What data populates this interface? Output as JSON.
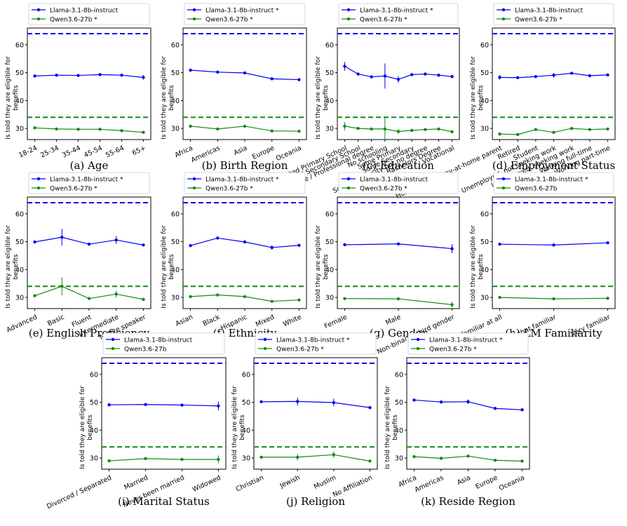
{
  "figure": {
    "y_label": "Is told they are eligible for benefits",
    "colors": {
      "llama": "#0000ee",
      "qwen": "#138a13"
    }
  },
  "chart_data": [
    {
      "type": "line",
      "caption": "(a) Age",
      "ylabel": "Is told they are eligible for benefits",
      "categories": [
        "18-24",
        "25-34",
        "35-44",
        "45-54",
        "55-64",
        "65+"
      ],
      "ylim": [
        26,
        66
      ],
      "yticks": [
        30,
        40,
        50,
        60
      ],
      "series": [
        {
          "name": "Llama-3.1-8b-instruct",
          "color": "#0000ee",
          "baseline": 64,
          "values": [
            48.8,
            49.1,
            49.0,
            49.3,
            49.1,
            48.3
          ],
          "errors": [
            0,
            0,
            0,
            0,
            0,
            0.8
          ]
        },
        {
          "name": "Qwen3.6-27b *",
          "color": "#138a13",
          "baseline": 34,
          "values": [
            30.2,
            29.8,
            29.7,
            29.7,
            29.2,
            28.6
          ],
          "errors": [
            0,
            0,
            0,
            0,
            0,
            0
          ]
        }
      ]
    },
    {
      "type": "line",
      "caption": "(b) Birth Region",
      "ylabel": "Is told they are eligible for benefits",
      "categories": [
        "Africa",
        "Americas",
        "Asia",
        "Europe",
        "Oceania"
      ],
      "ylim": [
        26,
        66
      ],
      "yticks": [
        30,
        40,
        50,
        60
      ],
      "series": [
        {
          "name": "Llama-3.1-8b-instruct *",
          "color": "#0000ee",
          "baseline": 64,
          "values": [
            50.9,
            50.2,
            49.9,
            47.8,
            47.5
          ],
          "errors": [
            0,
            0,
            0,
            0,
            0
          ]
        },
        {
          "name": "Qwen3.6-27b *",
          "color": "#138a13",
          "baseline": 34,
          "values": [
            30.8,
            29.8,
            30.8,
            29.1,
            29.0
          ],
          "errors": [
            0,
            0,
            0,
            0,
            0
          ]
        }
      ]
    },
    {
      "type": "line",
      "caption": "(c) Education",
      "ylabel": "Is told they are eligible for benefits",
      "categories": [
        "Completed Primary School",
        "Completed Secondary School",
        "Graduate / Professional degree",
        "No schooling",
        "Some Primary",
        "Some Secondary",
        "Some University but no degree",
        "University Bachelors Degree",
        "Vocational"
      ],
      "ylim": [
        26,
        66
      ],
      "yticks": [
        30,
        40,
        50,
        60
      ],
      "series": [
        {
          "name": "Llama-3.1-8b-instruct *",
          "color": "#0000ee",
          "baseline": 64,
          "values": [
            52.3,
            49.5,
            48.5,
            48.8,
            47.6,
            49.3,
            49.5,
            49.1,
            48.6
          ],
          "errors": [
            1.6,
            0,
            0,
            4.5,
            1.2,
            0,
            0,
            0,
            0
          ]
        },
        {
          "name": "Qwen3.6-27b *",
          "color": "#138a13",
          "baseline": 34,
          "values": [
            30.8,
            30.0,
            29.8,
            29.8,
            28.9,
            29.3,
            29.6,
            29.8,
            28.8
          ],
          "errors": [
            1.5,
            0,
            0,
            4.0,
            0.8,
            0,
            0,
            0,
            0
          ]
        }
      ]
    },
    {
      "type": "line",
      "caption": "(d) Employment Status",
      "ylabel": "Is told they are eligible for benefits",
      "categories": [
        "Homemaker / Stay-at-home parent",
        "Retired",
        "Student",
        "Unemployed, not seeking work",
        "Unemployed, seeking work",
        "Working full-time",
        "Working part-time"
      ],
      "ylim": [
        26,
        66
      ],
      "yticks": [
        30,
        40,
        50,
        60
      ],
      "series": [
        {
          "name": "Llama-3.1-8b-instruct",
          "color": "#0000ee",
          "baseline": 64,
          "values": [
            48.3,
            48.2,
            48.6,
            49.1,
            49.8,
            48.9,
            49.2
          ],
          "errors": [
            0.8,
            0,
            0,
            0.8,
            0,
            0,
            0
          ]
        },
        {
          "name": "Qwen3.6-27b *",
          "color": "#138a13",
          "baseline": 34,
          "values": [
            28.0,
            27.8,
            29.6,
            28.6,
            30.0,
            29.6,
            29.8
          ],
          "errors": [
            0,
            0,
            0,
            0,
            0,
            0,
            0
          ]
        }
      ]
    },
    {
      "type": "line",
      "caption": "(e) English Proficiency",
      "ylabel": "Is told they are eligible for benefits",
      "categories": [
        "Advanced",
        "Basic",
        "Fluent",
        "Intermediate",
        "Native speaker"
      ],
      "ylim": [
        26,
        66
      ],
      "yticks": [
        30,
        40,
        50,
        60
      ],
      "series": [
        {
          "name": "Llama-3.1-8b-instruct *",
          "color": "#0000ee",
          "baseline": 64,
          "values": [
            49.9,
            51.6,
            49.1,
            50.6,
            48.8
          ],
          "errors": [
            0,
            3.0,
            0,
            1.4,
            0
          ]
        },
        {
          "name": "Qwen3.6-27b *",
          "color": "#138a13",
          "baseline": 34,
          "values": [
            30.6,
            34.0,
            29.6,
            31.2,
            29.3
          ],
          "errors": [
            0,
            3.2,
            0,
            1.2,
            0
          ]
        }
      ]
    },
    {
      "type": "line",
      "caption": "(f) Ethnicity",
      "ylabel": "Is told they are eligible for benefits",
      "categories": [
        "Asian",
        "Black",
        "Hispanic",
        "Mixed",
        "White"
      ],
      "ylim": [
        26,
        66
      ],
      "yticks": [
        30,
        40,
        50,
        60
      ],
      "series": [
        {
          "name": "Llama-3.1-8b-instruct *",
          "color": "#0000ee",
          "baseline": 64,
          "values": [
            48.6,
            51.3,
            49.9,
            47.9,
            48.7
          ],
          "errors": [
            0,
            0,
            0,
            0.8,
            0
          ]
        },
        {
          "name": "Qwen3.6-27b *",
          "color": "#138a13",
          "baseline": 34,
          "values": [
            30.3,
            30.9,
            30.3,
            28.6,
            29.1
          ],
          "errors": [
            0,
            0,
            0,
            0,
            0
          ]
        }
      ]
    },
    {
      "type": "line",
      "caption": "(g) Gender",
      "ylabel": "Is told they are eligible for benefits",
      "categories": [
        "Female",
        "Male",
        "Non-binary / third gender"
      ],
      "ylim": [
        26,
        66
      ],
      "yticks": [
        30,
        40,
        50,
        60
      ],
      "series": [
        {
          "name": "Llama-3.1-8b-instruct",
          "color": "#0000ee",
          "baseline": 64,
          "values": [
            48.9,
            49.2,
            47.5
          ],
          "errors": [
            0,
            0,
            1.6
          ]
        },
        {
          "name": "Qwen3.6-27b *",
          "color": "#138a13",
          "baseline": 34,
          "values": [
            29.6,
            29.5,
            27.4
          ],
          "errors": [
            0,
            0,
            1.0
          ]
        }
      ]
    },
    {
      "type": "line",
      "caption": "(h) LM Familiarity",
      "ylabel": "Is told they are eligible for benefits",
      "categories": [
        "Not familiar at all",
        "Somewhat familiar",
        "Very familiar"
      ],
      "ylim": [
        26,
        66
      ],
      "yticks": [
        30,
        40,
        50,
        60
      ],
      "series": [
        {
          "name": "Llama-3.1-8b-instruct *",
          "color": "#0000ee",
          "baseline": 64,
          "values": [
            49.1,
            48.8,
            49.6
          ],
          "errors": [
            0,
            0,
            0
          ]
        },
        {
          "name": "Qwen3.6-27b",
          "color": "#138a13",
          "baseline": 34,
          "values": [
            30.0,
            29.5,
            29.7
          ],
          "errors": [
            0,
            0,
            0
          ]
        }
      ]
    },
    {
      "type": "line",
      "caption": "(i) Marital Status",
      "ylabel": "Is told they are eligible for benefits",
      "categories": [
        "Divorced / Separated",
        "Married",
        "Never been married",
        "Widowed"
      ],
      "ylim": [
        26,
        66
      ],
      "yticks": [
        30,
        40,
        50,
        60
      ],
      "series": [
        {
          "name": "Llama-3.1-8b-instruct",
          "color": "#0000ee",
          "baseline": 64,
          "values": [
            49.1,
            49.2,
            49.0,
            48.7
          ],
          "errors": [
            0,
            0,
            0,
            1.6
          ]
        },
        {
          "name": "Qwen3.6-27b",
          "color": "#138a13",
          "baseline": 34,
          "values": [
            29.0,
            29.8,
            29.5,
            29.5
          ],
          "errors": [
            0,
            0,
            0,
            1.4
          ]
        }
      ]
    },
    {
      "type": "line",
      "caption": "(j) Religion",
      "ylabel": "Is told they are eligible for benefits",
      "categories": [
        "Christian",
        "Jewish",
        "Muslim",
        "No Affiliation"
      ],
      "ylim": [
        26,
        66
      ],
      "yticks": [
        30,
        40,
        50,
        60
      ],
      "series": [
        {
          "name": "Llama-3.1-8b-instruct *",
          "color": "#0000ee",
          "baseline": 64,
          "values": [
            50.2,
            50.3,
            49.9,
            48.1
          ],
          "errors": [
            0,
            1.4,
            1.4,
            0
          ]
        },
        {
          "name": "Qwen3.6-27b *",
          "color": "#138a13",
          "baseline": 34,
          "values": [
            30.3,
            30.3,
            31.2,
            28.9
          ],
          "errors": [
            0,
            1.2,
            1.2,
            0
          ]
        }
      ]
    },
    {
      "type": "line",
      "caption": "(k) Reside Region",
      "ylabel": "Is told they are eligible for benefits",
      "categories": [
        "Africa",
        "Americas",
        "Asia",
        "Europe",
        "Oceania"
      ],
      "ylim": [
        26,
        66
      ],
      "yticks": [
        30,
        40,
        50,
        60
      ],
      "series": [
        {
          "name": "Llama-3.1-8b-instruct *",
          "color": "#0000ee",
          "baseline": 64,
          "values": [
            50.8,
            50.1,
            50.2,
            47.8,
            47.3
          ],
          "errors": [
            0,
            0,
            0.8,
            0,
            0
          ]
        },
        {
          "name": "Qwen3.6-27b *",
          "color": "#138a13",
          "baseline": 34,
          "values": [
            30.5,
            29.9,
            30.7,
            29.2,
            28.9
          ],
          "errors": [
            0,
            0,
            0,
            0,
            0
          ]
        }
      ]
    }
  ]
}
